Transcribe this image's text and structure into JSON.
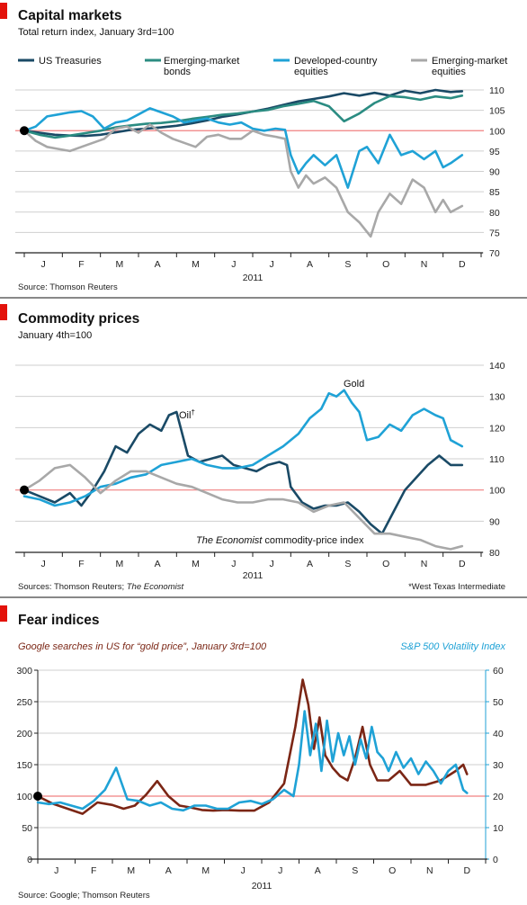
{
  "palette": {
    "accent_red": "#e3120b",
    "grid": "#cfcfcf",
    "ref_line": "#f08080",
    "navy": "#1a4a66",
    "teal": "#2b8c82",
    "cyan": "#1fa2d6",
    "gray": "#a8a8a8",
    "brown": "#7b2615",
    "vix_axis": "#1fa2d6"
  },
  "year_label": "2011",
  "chart_data": [
    {
      "type": "line",
      "title": "Capital markets",
      "subtitle": "Total return index, January 3rd=100",
      "source": "Source: Thomson Reuters",
      "x_ticks": [
        "J",
        "F",
        "M",
        "A",
        "M",
        "J",
        "J",
        "A",
        "S",
        "O",
        "N",
        "D"
      ],
      "x_range": [
        0,
        12
      ],
      "ylim": [
        70,
        110
      ],
      "y_ticks": [
        "110",
        "105",
        "100",
        "95",
        "90",
        "85",
        "80",
        "75",
        "70"
      ],
      "y_tick_values": [
        110,
        105,
        100,
        95,
        90,
        85,
        80,
        75,
        70
      ],
      "reference_value": 100,
      "series": [
        {
          "name": "US Treasuries",
          "color": "#1a4a66",
          "x": [
            0,
            0.4,
            0.8,
            1.2,
            1.6,
            2,
            2.4,
            2.8,
            3.2,
            3.6,
            4,
            4.4,
            4.8,
            5.2,
            5.6,
            6,
            6.4,
            6.8,
            7.2,
            7.6,
            8,
            8.4,
            8.8,
            9.2,
            9.6,
            10,
            10.4,
            10.8,
            11.2,
            11.5
          ],
          "y": [
            100,
            99.5,
            99,
            98.8,
            98.7,
            99,
            99.6,
            100.2,
            100.5,
            100.8,
            101.2,
            101.8,
            102.5,
            103.4,
            104,
            104.7,
            105.4,
            106.3,
            107.2,
            107.8,
            108.4,
            109.2,
            108.6,
            109.3,
            108.6,
            109.8,
            109.2,
            110,
            109.5,
            109.7
          ]
        },
        {
          "name": "Emerging-market bonds",
          "color": "#2b8c82",
          "x": [
            0,
            0.4,
            0.8,
            1.2,
            1.6,
            2,
            2.4,
            2.8,
            3.2,
            3.6,
            4,
            4.4,
            4.8,
            5.2,
            5.6,
            6,
            6.4,
            6.8,
            7.2,
            7.6,
            8,
            8.4,
            8.8,
            9.2,
            9.6,
            10,
            10.4,
            10.8,
            11.2,
            11.5
          ],
          "y": [
            100,
            99,
            98.3,
            98.8,
            99.4,
            100,
            100.8,
            101.3,
            101.7,
            101.9,
            102.3,
            102.9,
            103.4,
            103.9,
            104.2,
            104.7,
            105.1,
            106,
            106.6,
            107.3,
            106,
            102.3,
            104.2,
            106.8,
            108.5,
            108.2,
            107.6,
            108.4,
            108,
            108.6
          ]
        },
        {
          "name": "Developed-country equities",
          "color": "#1fa2d6",
          "x": [
            0,
            0.3,
            0.6,
            0.9,
            1.2,
            1.5,
            1.8,
            2.1,
            2.4,
            2.7,
            3,
            3.3,
            3.6,
            3.9,
            4.2,
            4.5,
            4.8,
            5.1,
            5.4,
            5.7,
            6,
            6.3,
            6.6,
            6.85,
            7,
            7.2,
            7.4,
            7.6,
            7.9,
            8.2,
            8.5,
            8.8,
            9,
            9.3,
            9.6,
            9.9,
            10.2,
            10.5,
            10.8,
            11,
            11.2,
            11.5
          ],
          "y": [
            100,
            101,
            103.5,
            104,
            104.5,
            104.8,
            103.5,
            100.5,
            102,
            102.5,
            104,
            105.5,
            104.5,
            103.5,
            102,
            102.5,
            103,
            102,
            101.5,
            102,
            100.5,
            100,
            100.5,
            100.2,
            94,
            89.5,
            92,
            94,
            91.5,
            94,
            86,
            95,
            96,
            92,
            99,
            94,
            95,
            93,
            95,
            91,
            92,
            94
          ]
        },
        {
          "name": "Emerging-market equities",
          "color": "#a8a8a8",
          "x": [
            0,
            0.3,
            0.6,
            0.9,
            1.2,
            1.5,
            1.8,
            2.1,
            2.4,
            2.7,
            3,
            3.3,
            3.6,
            3.9,
            4.2,
            4.5,
            4.8,
            5.1,
            5.4,
            5.7,
            6,
            6.3,
            6.6,
            6.85,
            7,
            7.2,
            7.4,
            7.6,
            7.9,
            8.2,
            8.5,
            8.8,
            9.1,
            9.3,
            9.6,
            9.9,
            10.2,
            10.5,
            10.8,
            11,
            11.2,
            11.5
          ],
          "y": [
            100,
            97.5,
            96,
            95.5,
            95,
            96,
            97,
            98,
            100.5,
            101,
            99.5,
            101.5,
            99.5,
            98,
            97,
            96,
            98.5,
            99,
            98,
            98,
            100,
            99,
            98.5,
            98,
            90,
            86,
            89,
            87,
            88.5,
            86,
            80,
            77.5,
            74,
            80,
            84.5,
            82,
            88,
            86,
            80,
            83,
            80,
            81.5
          ]
        }
      ]
    },
    {
      "type": "line",
      "title": "Commodity prices",
      "subtitle": "January 4th=100",
      "source": "Sources: Thomson Reuters; The Economist",
      "source_parts": [
        "Sources: Thomson Reuters; ",
        "The Economist"
      ],
      "footnote": "*West Texas Intermediate",
      "x_ticks": [
        "J",
        "F",
        "M",
        "A",
        "M",
        "J",
        "J",
        "A",
        "S",
        "O",
        "N",
        "D"
      ],
      "x_range": [
        0,
        12
      ],
      "ylim": [
        80,
        140
      ],
      "y_ticks": [
        "140",
        "130",
        "120",
        "110",
        "100",
        "90",
        "80"
      ],
      "y_tick_values": [
        140,
        130,
        120,
        110,
        100,
        90,
        80
      ],
      "reference_value": 100,
      "annotations": {
        "oil_label": "Oil",
        "oil_mark": "†",
        "gold_label": "Gold",
        "index_label_italic": "The Economist",
        "index_label_rest": " commodity-price index"
      },
      "series": [
        {
          "name": "Oil",
          "color": "#1a4a66",
          "x": [
            0,
            0.4,
            0.8,
            1.2,
            1.5,
            1.8,
            2.1,
            2.4,
            2.7,
            3,
            3.3,
            3.6,
            3.8,
            4,
            4.3,
            4.6,
            4.9,
            5.2,
            5.5,
            5.8,
            6.1,
            6.4,
            6.7,
            6.9,
            7,
            7.3,
            7.6,
            7.9,
            8.2,
            8.5,
            8.8,
            9.1,
            9.4,
            9.7,
            10,
            10.3,
            10.6,
            10.9,
            11.2,
            11.5
          ],
          "y": [
            100,
            98,
            96,
            99,
            95,
            100,
            106,
            114,
            112,
            118,
            121,
            119,
            124,
            125,
            111,
            109,
            110,
            111,
            108,
            107,
            106,
            108,
            109,
            108,
            101,
            96,
            94,
            95,
            95,
            96,
            93,
            89,
            86,
            93,
            100,
            104,
            108,
            111,
            108,
            108
          ]
        },
        {
          "name": "Gold",
          "color": "#1fa2d6",
          "x": [
            0,
            0.4,
            0.8,
            1.2,
            1.6,
            2,
            2.4,
            2.8,
            3.2,
            3.6,
            4,
            4.4,
            4.8,
            5.2,
            5.6,
            6,
            6.4,
            6.8,
            7.2,
            7.5,
            7.8,
            8,
            8.2,
            8.4,
            8.6,
            8.8,
            9,
            9.3,
            9.6,
            9.9,
            10.2,
            10.5,
            10.8,
            11,
            11.2,
            11.5
          ],
          "y": [
            98,
            97,
            95,
            96,
            98,
            101,
            102,
            104,
            105,
            108,
            109,
            110,
            108,
            107,
            107,
            108,
            111,
            114,
            118,
            123,
            126,
            131,
            130,
            132,
            128,
            125,
            116,
            117,
            121,
            119,
            124,
            126,
            124,
            123,
            116,
            114
          ]
        },
        {
          "name": "The Economist commodity-price index",
          "color": "#a8a8a8",
          "x": [
            0,
            0.4,
            0.8,
            1.2,
            1.6,
            2,
            2.4,
            2.8,
            3.2,
            3.6,
            4,
            4.4,
            4.8,
            5.2,
            5.6,
            6,
            6.4,
            6.8,
            7.2,
            7.6,
            8,
            8.4,
            8.8,
            9.2,
            9.6,
            10,
            10.4,
            10.8,
            11.2,
            11.5
          ],
          "y": [
            100,
            103,
            107,
            108,
            104,
            99,
            103,
            106,
            106,
            104,
            102,
            101,
            99,
            97,
            96,
            96,
            97,
            97,
            96,
            93,
            95,
            96,
            91,
            86,
            86,
            85,
            84,
            82,
            81,
            82
          ]
        }
      ]
    },
    {
      "type": "line",
      "title": "Fear indices",
      "source": "Source: Google; Thomson Reuters",
      "x_ticks": [
        "J",
        "F",
        "M",
        "A",
        "M",
        "J",
        "J",
        "A",
        "S",
        "O",
        "N",
        "D"
      ],
      "x_range": [
        0,
        12
      ],
      "left_axis": {
        "label": "Google searches in US for “gold price”, January 3rd=100",
        "ylim": [
          0,
          300
        ],
        "y_ticks": [
          "300",
          "250",
          "200",
          "150",
          "100",
          "50",
          "0"
        ],
        "y_tick_values": [
          300,
          250,
          200,
          150,
          100,
          50,
          0
        ]
      },
      "right_axis": {
        "label": "S&P 500 Volatility Index",
        "ylim": [
          0,
          60
        ],
        "y_ticks": [
          "60",
          "50",
          "40",
          "30",
          "20",
          "10",
          "0"
        ],
        "y_tick_values": [
          60,
          50,
          40,
          30,
          20,
          10,
          0
        ]
      },
      "reference_value_left": 100,
      "series": [
        {
          "name": "Google searches in US for “gold price”",
          "axis": "left",
          "color": "#7b2615",
          "x": [
            0,
            0.4,
            0.8,
            1.2,
            1.6,
            2,
            2.3,
            2.6,
            2.9,
            3.2,
            3.5,
            3.8,
            4.1,
            4.4,
            4.7,
            5,
            5.4,
            5.8,
            6.2,
            6.6,
            6.9,
            7.1,
            7.25,
            7.4,
            7.55,
            7.7,
            7.9,
            8.1,
            8.3,
            8.5,
            8.7,
            8.9,
            9.1,
            9.4,
            9.7,
            10,
            10.4,
            10.8,
            11.2,
            11.4,
            11.5
          ],
          "y": [
            100,
            88,
            80,
            72,
            90,
            86,
            80,
            85,
            102,
            124,
            100,
            85,
            82,
            78,
            77,
            78,
            77,
            77,
            90,
            120,
            210,
            285,
            245,
            175,
            225,
            165,
            145,
            132,
            125,
            160,
            210,
            150,
            125,
            125,
            140,
            118,
            118,
            125,
            140,
            150,
            135
          ]
        },
        {
          "name": "S&P 500 Volatility Index",
          "axis": "right",
          "color": "#1fa2d6",
          "x": [
            0,
            0.3,
            0.6,
            0.9,
            1.2,
            1.5,
            1.8,
            2.1,
            2.4,
            2.7,
            3,
            3.3,
            3.6,
            3.9,
            4.2,
            4.5,
            4.8,
            5.1,
            5.4,
            5.7,
            6,
            6.3,
            6.6,
            6.85,
            7,
            7.15,
            7.3,
            7.45,
            7.6,
            7.75,
            7.9,
            8.05,
            8.2,
            8.35,
            8.5,
            8.65,
            8.8,
            8.95,
            9.1,
            9.25,
            9.4,
            9.6,
            9.8,
            10,
            10.2,
            10.4,
            10.6,
            10.8,
            11,
            11.2,
            11.4,
            11.5
          ],
          "y": [
            18,
            17.5,
            18,
            17,
            16,
            18.5,
            22,
            29,
            19,
            18.5,
            17,
            18,
            16,
            15.5,
            17,
            17,
            16,
            16,
            18,
            18.5,
            17.5,
            19,
            22,
            20,
            30,
            47,
            33,
            43,
            28,
            44,
            31,
            40,
            33,
            39,
            30,
            38,
            32,
            42,
            34,
            32,
            28,
            34,
            29,
            32,
            27,
            31,
            28,
            24,
            28,
            30,
            22,
            21
          ]
        }
      ]
    }
  ]
}
